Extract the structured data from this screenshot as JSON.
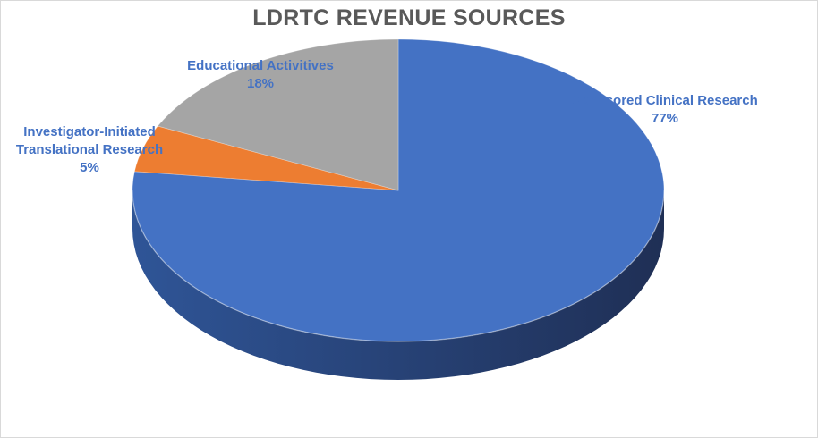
{
  "chart_data": {
    "type": "pie",
    "title": "LDRTC REVENUE SOURCES",
    "slices": [
      {
        "name": "Sponsored Clinical Research",
        "value": 77,
        "label": "77%",
        "color": "#4472C4",
        "side_color": "#2F5597"
      },
      {
        "name": "Investigator-Initiated Translational Research",
        "name_lines": [
          "Investigator-Initiated",
          "Translational Research"
        ],
        "value": 5,
        "label": "5%",
        "color": "#ED7D31",
        "side_color": "#C55A11"
      },
      {
        "name": "Educational Activitives",
        "value": 18,
        "label": "18%",
        "color": "#A5A5A5",
        "side_color": "#7F7F7F"
      }
    ],
    "style": "3d",
    "legend": "none",
    "data_labels": "category-and-percent"
  }
}
